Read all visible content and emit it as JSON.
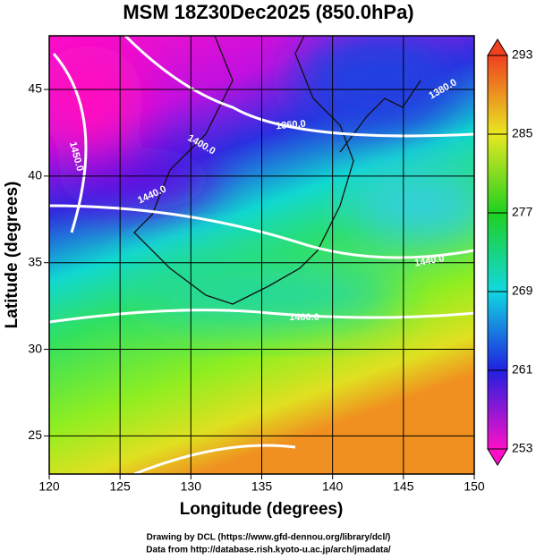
{
  "title": "MSM 18Z30Dec2025 (850.0hPa)",
  "x_axis": {
    "label": "Longitude (degrees)",
    "lim": [
      120,
      150
    ],
    "ticks": [
      120,
      125,
      130,
      135,
      140,
      145,
      150
    ]
  },
  "y_axis": {
    "label": "Latitude  (degrees)",
    "lim": [
      22.8,
      48.1
    ],
    "ticks": [
      25,
      30,
      35,
      40,
      45
    ]
  },
  "colorbar": {
    "lim": [
      253,
      293
    ],
    "ticks": [
      253,
      261,
      269,
      277,
      285,
      293
    ]
  },
  "contour_labels": [
    "1450.0",
    "1400.0",
    "1440.0",
    "1360.0",
    "1380.0",
    "1440.0",
    "1460.0"
  ],
  "footer": [
    "Drawing by DCL (https://www.gfd-dennou.org/library/dcl/)",
    "Data from http://database.rish.kyoto-u.ac.jp/arch/jmadata/"
  ]
}
